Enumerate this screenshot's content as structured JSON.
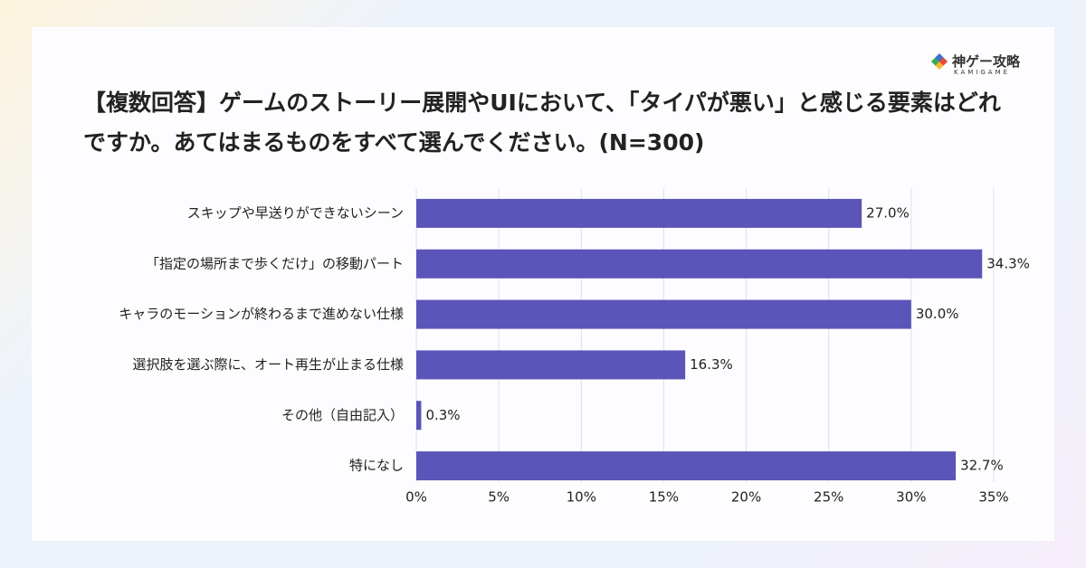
{
  "logo": {
    "text": "神ゲー攻略",
    "subtext": "KAMIGAME"
  },
  "chart_data": {
    "type": "hbar",
    "title": "【複数回答】ゲームのストーリー展開やUIにおいて、「タイパが悪い」と感じる要素はどれですか。あてはまるものをすべて選んでください。(N=300)",
    "categories": [
      "スキップや早送りができないシーン",
      "「指定の場所まで歩くだけ」の移動パート",
      "キャラのモーションが終わるまで進めない仕様",
      "選択肢を選ぶ際に、オート再生が止まる仕様",
      "その他（自由記入）",
      "特になし"
    ],
    "values": [
      27.0,
      34.3,
      30.0,
      16.3,
      0.3,
      32.7
    ],
    "value_labels": [
      "27.0%",
      "34.3%",
      "30.0%",
      "16.3%",
      "0.3%",
      "32.7%"
    ],
    "color": "#5b55b9",
    "xlim": [
      0,
      35
    ],
    "xticks": [
      {
        "value": 0,
        "label": "0%"
      },
      {
        "value": 5,
        "label": "5%"
      },
      {
        "value": 10,
        "label": "10%"
      },
      {
        "value": 15,
        "label": "15%"
      },
      {
        "value": 20,
        "label": "20%"
      },
      {
        "value": 25,
        "label": "25%"
      },
      {
        "value": 30,
        "label": "30%"
      },
      {
        "value": 35,
        "label": "35%"
      }
    ],
    "grid": true
  }
}
